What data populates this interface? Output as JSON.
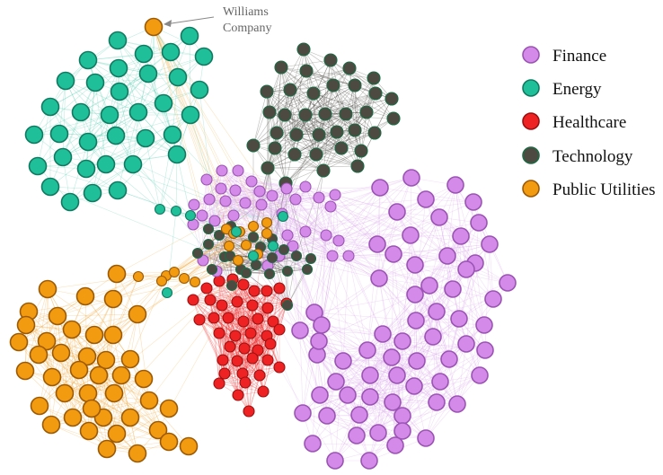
{
  "annotation": {
    "line1": "Williams",
    "line2": "Company"
  },
  "legend": [
    {
      "key": "finance",
      "label": "Finance",
      "color": "#d48ae8",
      "edge": "#9b54b4"
    },
    {
      "key": "energy",
      "label": "Energy",
      "color": "#1fbf9a",
      "edge": "#0f7a60"
    },
    {
      "key": "healthcare",
      "label": "Healthcare",
      "color": "#ee2222",
      "edge": "#9a1010"
    },
    {
      "key": "technology",
      "label": "Technology",
      "color": "#4d4a42",
      "edge": "#1e6a45"
    },
    {
      "key": "utilities",
      "label": "Public Utilities",
      "color": "#f29a10",
      "edge": "#9c5a05"
    }
  ]
}
